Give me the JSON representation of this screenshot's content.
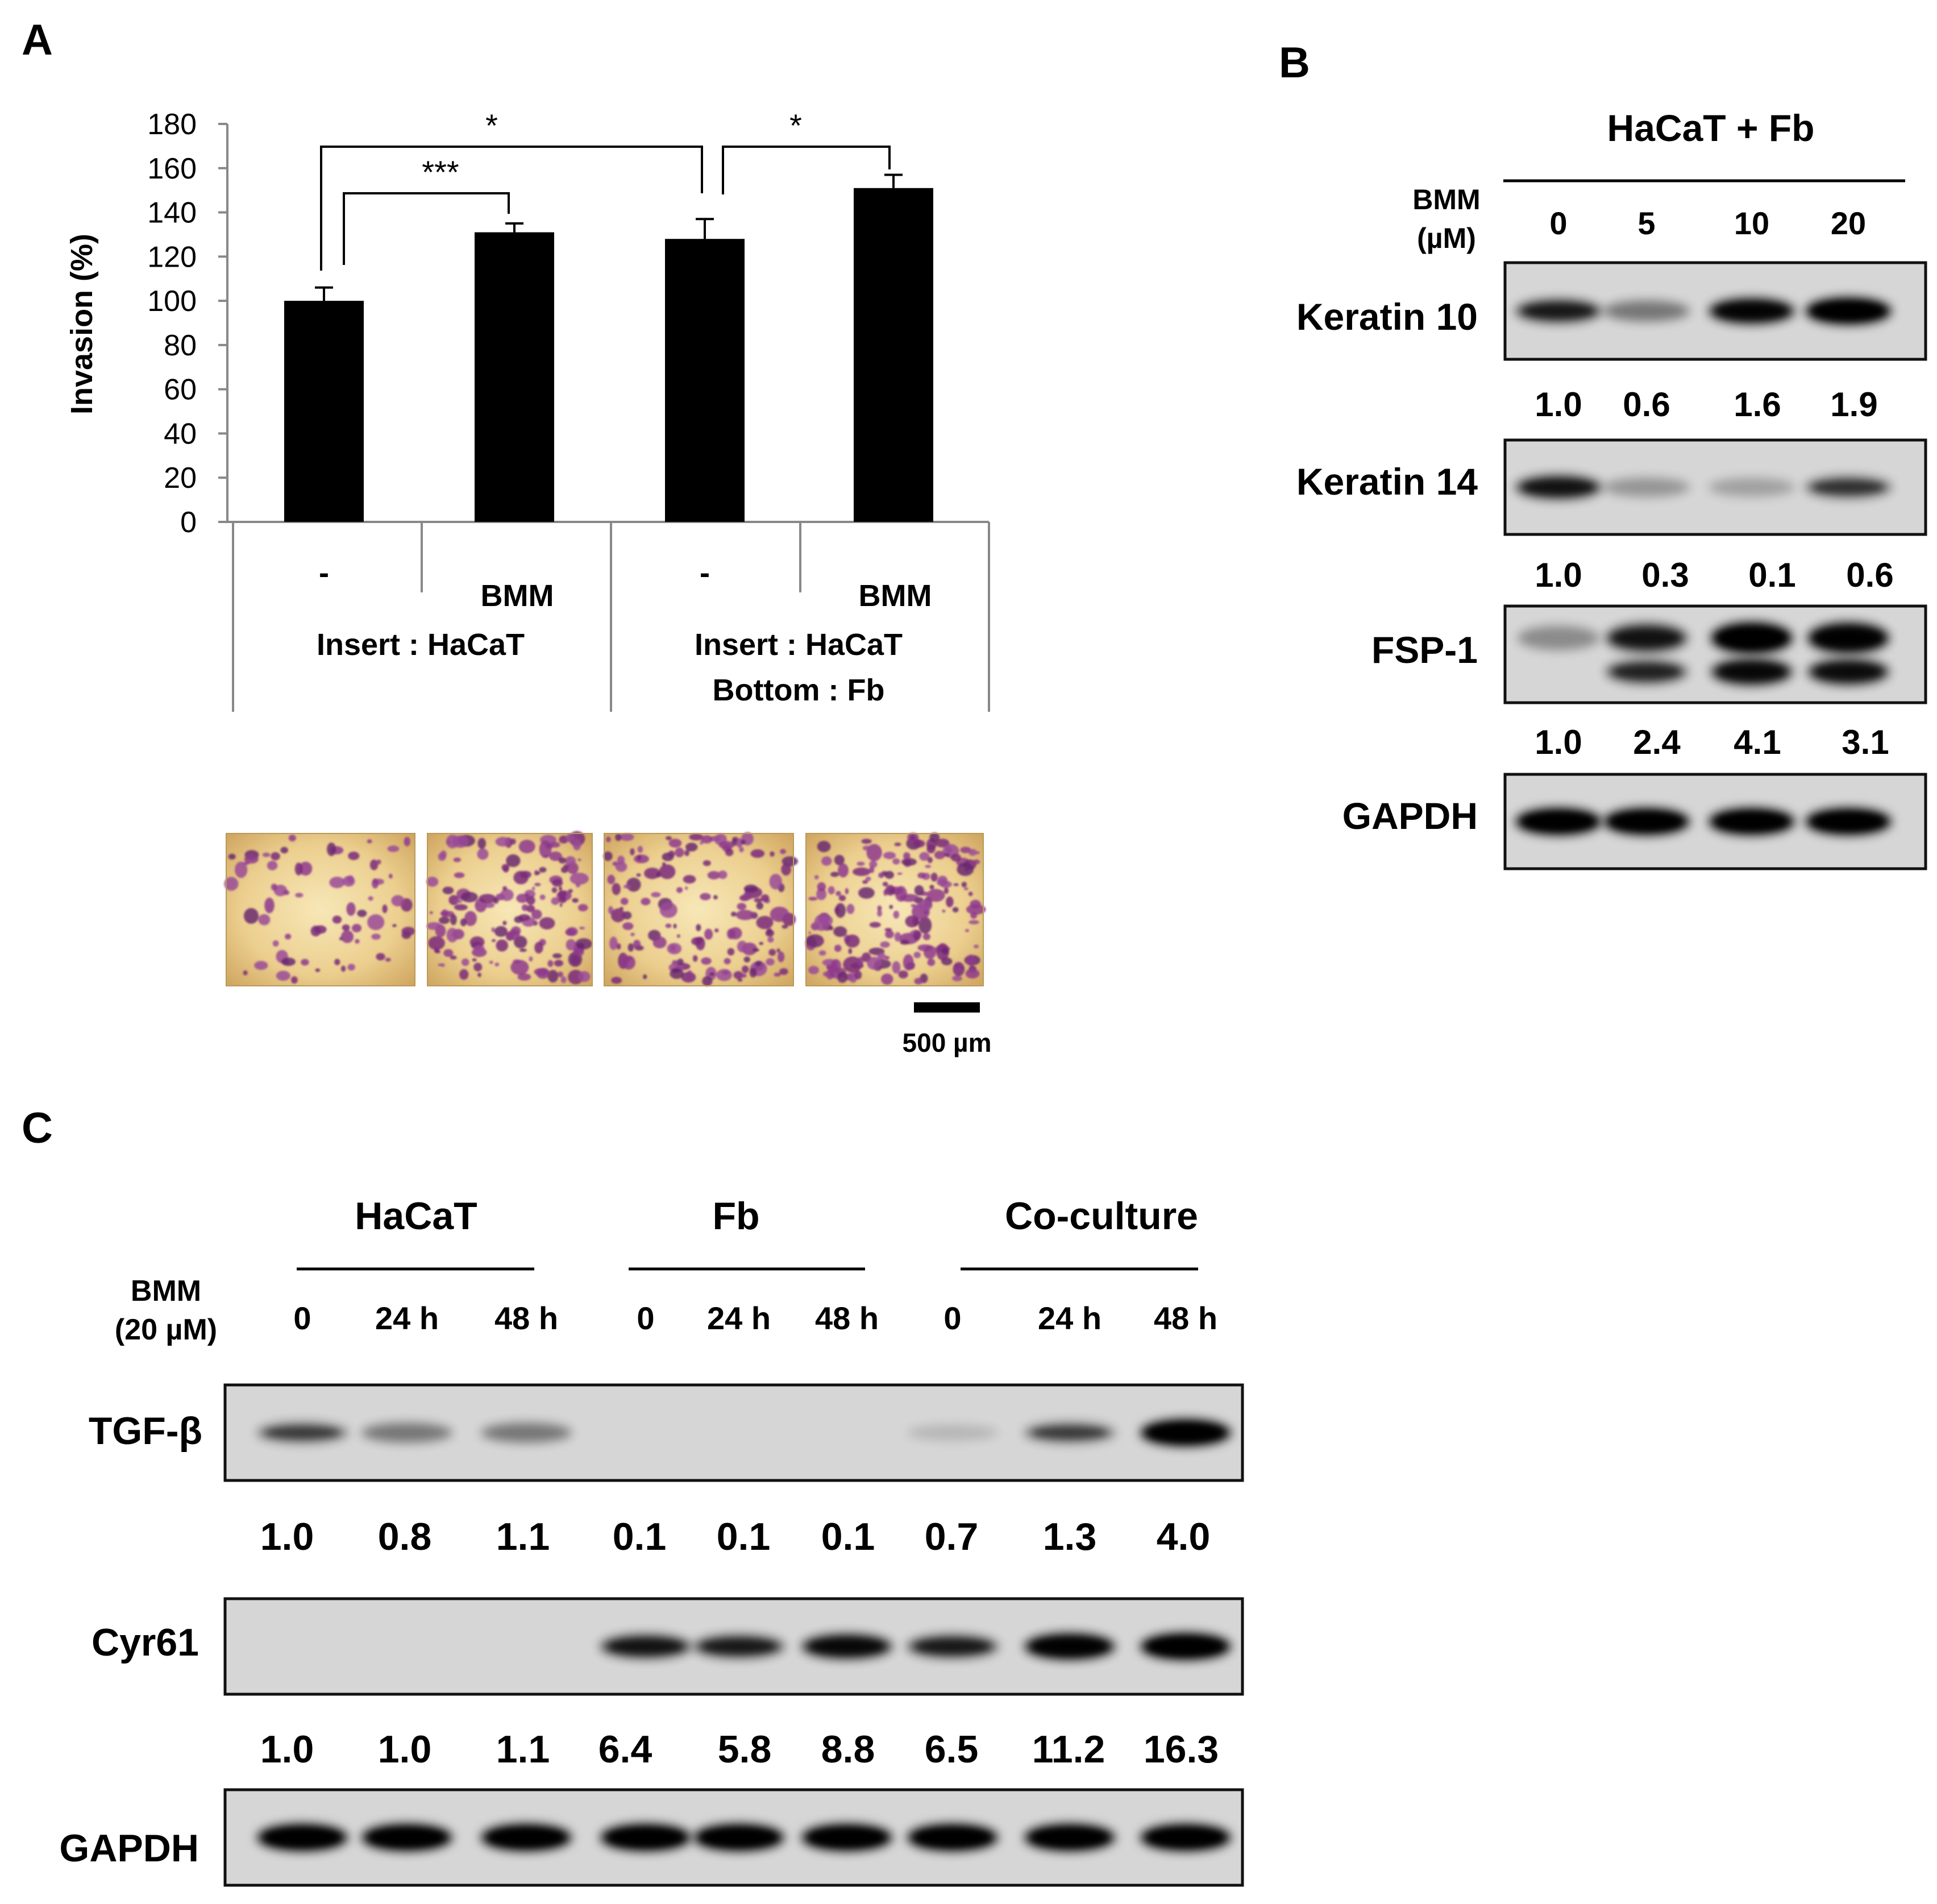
{
  "panel_a": {
    "letter": "A",
    "chart_data": {
      "type": "bar",
      "ylabel": "Invasion (%)",
      "ylim": [
        0,
        180
      ],
      "yticks": [
        "180",
        "160",
        "140",
        "120",
        "100",
        "80",
        "60",
        "40",
        "20",
        "0"
      ],
      "categories": [
        "-",
        "BMM",
        "-",
        "BMM"
      ],
      "values": [
        100,
        131,
        128,
        151
      ],
      "errors": [
        6,
        4,
        9,
        6
      ],
      "group_labels": [
        [
          "Insert : HaCaT"
        ],
        [
          "Insert : HaCaT",
          "Bottom : Fb"
        ]
      ],
      "significance": [
        {
          "from": 0,
          "to": 1,
          "label": "***"
        },
        {
          "from": 0,
          "to": 2,
          "label": "*"
        },
        {
          "from": 2,
          "to": 3,
          "label": "*"
        }
      ]
    },
    "scale_bar_label": "500 µm"
  },
  "panel_b": {
    "letter": "B",
    "group_title": "HaCaT + Fb",
    "treatment_label": [
      "BMM",
      "(µM)"
    ],
    "doses": [
      "0",
      "5",
      "10",
      "20"
    ],
    "blots": [
      {
        "name": "Keratin 10",
        "quant": [
          "1.0",
          "0.6",
          "1.6",
          "1.9"
        ]
      },
      {
        "name": "Keratin 14",
        "quant": [
          "1.0",
          "0.3",
          "0.1",
          "0.6"
        ]
      },
      {
        "name": "FSP-1",
        "quant": [
          "1.0",
          "2.4",
          "4.1",
          "3.1"
        ]
      },
      {
        "name": "GAPDH",
        "quant": []
      }
    ]
  },
  "panel_c": {
    "letter": "C",
    "groups": [
      "HaCaT",
      "Fb",
      "Co-culture"
    ],
    "treatment_label": [
      "BMM",
      "(20 µM)"
    ],
    "times": [
      "0",
      "24 h",
      "48 h",
      "0",
      "24 h",
      "48 h",
      "0",
      "24 h",
      "48 h"
    ],
    "blots": [
      {
        "name": "TGF-β",
        "quant": [
          "1.0",
          "0.8",
          "1.1",
          "0.1",
          "0.1",
          "0.1",
          "0.7",
          "1.3",
          "4.0"
        ]
      },
      {
        "name": "Cyr61",
        "quant": [
          "1.0",
          "1.0",
          "1.1",
          "6.4",
          "5.8",
          "8.8",
          "6.5",
          "11.2",
          "16.3"
        ]
      },
      {
        "name": "GAPDH",
        "quant": []
      }
    ]
  }
}
